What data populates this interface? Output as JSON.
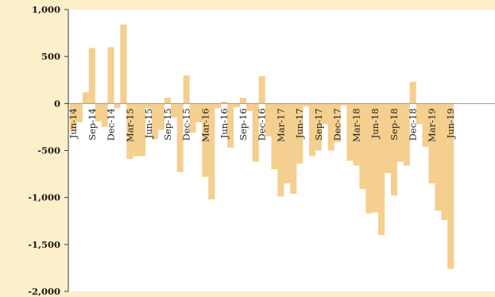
{
  "chart_data": {
    "type": "bar",
    "title": "",
    "xlabel": "",
    "ylabel": "",
    "ylim": [
      -2000,
      1000
    ],
    "yticks": [
      1000,
      500,
      0,
      -500,
      -1000,
      -1500,
      -2000
    ],
    "ytick_labels": [
      "1,000",
      "500",
      "0",
      "-500",
      "-1,000",
      "-1,500",
      "-2,000"
    ],
    "x_tick_labels": [
      {
        "index": 0,
        "label": "Jun-14"
      },
      {
        "index": 3,
        "label": "Sep-14"
      },
      {
        "index": 6,
        "label": "Dec-14"
      },
      {
        "index": 9,
        "label": "Mar-15"
      },
      {
        "index": 12,
        "label": "Jun-15"
      },
      {
        "index": 15,
        "label": "Sep-15"
      },
      {
        "index": 18,
        "label": "Dec-15"
      },
      {
        "index": 21,
        "label": "Mar-16"
      },
      {
        "index": 24,
        "label": "Jun-16"
      },
      {
        "index": 27,
        "label": "Sep-16"
      },
      {
        "index": 30,
        "label": "Dec-16"
      },
      {
        "index": 33,
        "label": "Mar-17"
      },
      {
        "index": 36,
        "label": "Jun-17"
      },
      {
        "index": 39,
        "label": "Sep-17"
      },
      {
        "index": 42,
        "label": "Dec-17"
      },
      {
        "index": 45,
        "label": "Mar-18"
      },
      {
        "index": 48,
        "label": "Jun-18"
      },
      {
        "index": 51,
        "label": "Sep-18"
      },
      {
        "index": 54,
        "label": "Dec-18"
      },
      {
        "index": 57,
        "label": "Mar-19"
      },
      {
        "index": 60,
        "label": "Jun-19"
      }
    ],
    "values": [
      -290,
      -200,
      120,
      590,
      -190,
      -250,
      600,
      -50,
      840,
      -590,
      -560,
      -560,
      -50,
      -380,
      -280,
      60,
      -150,
      -730,
      300,
      -310,
      -200,
      -780,
      -1020,
      -50,
      20,
      -470,
      -40,
      60,
      -80,
      -620,
      290,
      -350,
      -700,
      -990,
      -850,
      -960,
      -640,
      -30,
      -560,
      -500,
      -220,
      -500,
      -410,
      -20,
      -610,
      -660,
      -910,
      -1170,
      -1160,
      -1400,
      -740,
      -980,
      -620,
      -660,
      230,
      -220,
      -460,
      -850,
      -1140,
      -1240,
      -1760
    ],
    "colors": {
      "background": "#fdefc9",
      "plot_area": "#ffffff",
      "bar": "#f5cf8f",
      "axis": "#3a3a3a"
    }
  }
}
